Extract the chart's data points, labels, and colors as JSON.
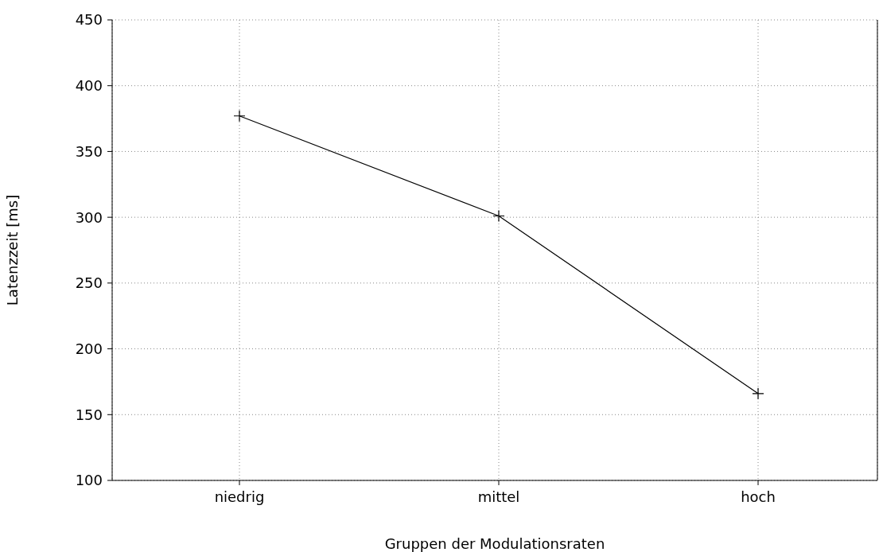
{
  "chart_data": {
    "type": "line",
    "xlabel": "Gruppen der Modulationsraten",
    "ylabel": "Latenzzeit [ms]",
    "categories": [
      "niedrig",
      "mittel",
      "hoch"
    ],
    "series": [
      {
        "color": "#000000",
        "values": [
          377,
          301,
          166
        ]
      }
    ],
    "ylim": [
      100,
      450
    ],
    "yticks": [
      100,
      150,
      200,
      250,
      300,
      350,
      400,
      450
    ],
    "grid": true,
    "marker": "cross",
    "line_style": "solid",
    "legend": false
  }
}
